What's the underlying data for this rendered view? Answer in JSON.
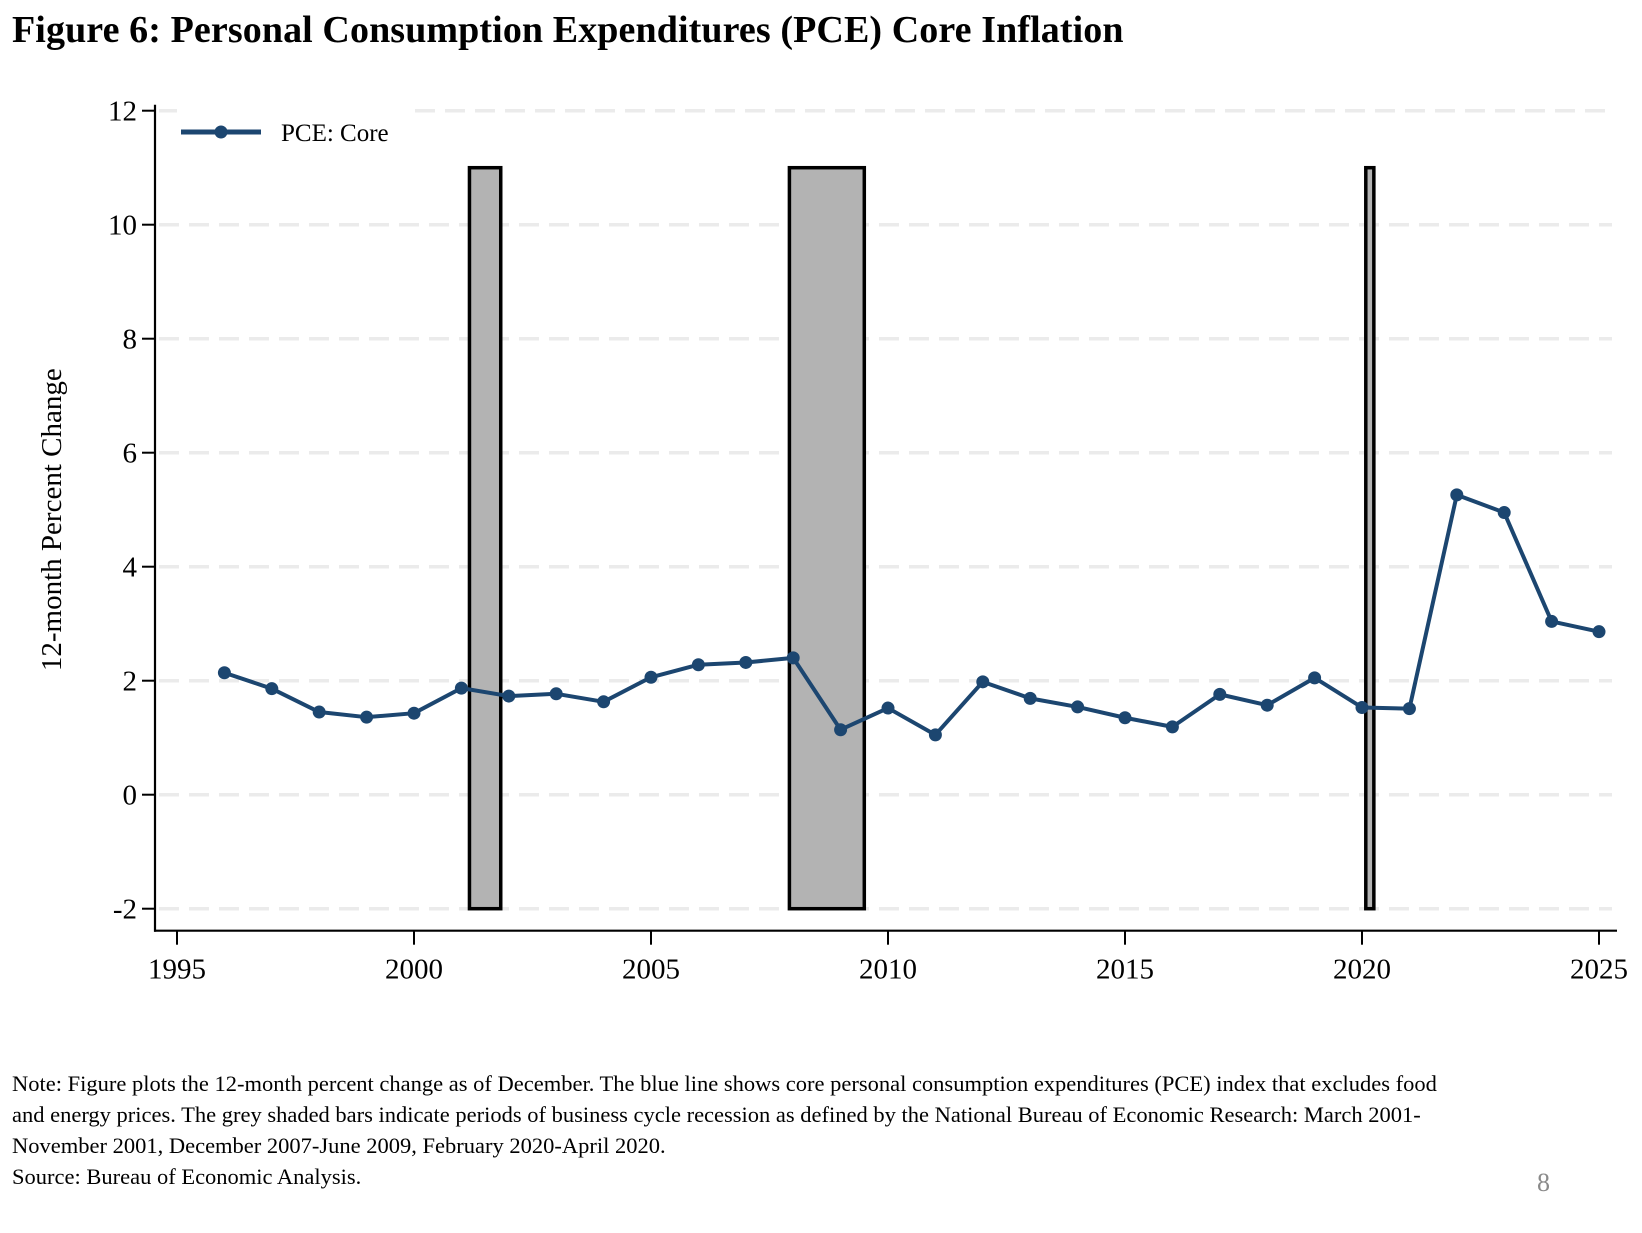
{
  "page": {
    "title": "Figure 6: Personal Consumption Expenditures (PCE) Core Inflation",
    "note_lines": [
      "Note: Figure plots the 12-month percent change as of December.  The blue line shows core personal consumption expenditures (PCE) index that excludes food",
      "and energy prices. The grey shaded bars indicate periods of business cycle recession as defined by the National Bureau of Economic Research: March 2001-",
      "November 2001, December 2007-June 2009, February 2020-April 2020.",
      "Source: Bureau of Economic Analysis."
    ],
    "page_number": "8"
  },
  "chart_data": {
    "type": "line",
    "title": "Figure 6: Personal Consumption Expenditures (PCE) Core Inflation",
    "xlabel": "",
    "ylabel": "12-month Percent Change",
    "xlim": [
      1995,
      2025
    ],
    "ylim": [
      -2,
      12
    ],
    "xticks": [
      1995,
      2000,
      2005,
      2010,
      2015,
      2020,
      2025
    ],
    "xtick_labels": [
      "1995",
      "2000",
      "2005",
      "2010",
      "2015",
      "2020",
      "2025"
    ],
    "yticks": [
      -2,
      0,
      2,
      4,
      6,
      8,
      10,
      12
    ],
    "ytick_labels": [
      "-2",
      "0",
      "2",
      "4",
      "6",
      "8",
      "10",
      "12"
    ],
    "grid": "horizontal dashed",
    "legend": {
      "placement": "top-left",
      "entries": [
        "PCE: Core"
      ]
    },
    "colors": {
      "series": "#1c4670",
      "recession_fill": "#b3b3b3",
      "recession_edge": "#000000",
      "grid": "#ebebeb"
    },
    "series": [
      {
        "name": "PCE: Core",
        "x": [
          1996,
          1997,
          1998,
          1999,
          2000,
          2001,
          2002,
          2003,
          2004,
          2005,
          2006,
          2007,
          2008,
          2009,
          2010,
          2011,
          2012,
          2013,
          2014,
          2015,
          2016,
          2017,
          2018,
          2019,
          2020,
          2021,
          2022,
          2023,
          2024,
          2025
        ],
        "values": [
          2.14,
          1.86,
          1.45,
          1.36,
          1.43,
          1.87,
          1.73,
          1.77,
          1.63,
          2.06,
          2.28,
          2.32,
          2.4,
          1.14,
          1.52,
          1.05,
          1.98,
          1.69,
          1.54,
          1.35,
          1.19,
          1.76,
          1.57,
          2.05,
          1.53,
          1.51,
          5.26,
          4.95,
          3.04,
          2.86
        ]
      }
    ],
    "shaded_regions": [
      {
        "label": "March 2001-November 2001",
        "x_start": 2001.17,
        "x_end": 2001.83,
        "y_bottom": -2,
        "y_top": 11
      },
      {
        "label": "December 2007-June 2009",
        "x_start": 2007.92,
        "x_end": 2009.5,
        "y_bottom": -2,
        "y_top": 11
      },
      {
        "label": "February 2020-April 2020",
        "x_start": 2020.08,
        "x_end": 2020.25,
        "y_bottom": -2,
        "y_top": 11
      }
    ]
  }
}
